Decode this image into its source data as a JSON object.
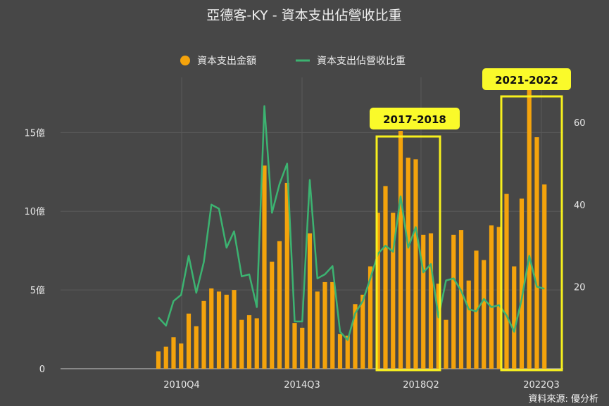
{
  "title": "亞德客-KY - 資本支出佔營收比重",
  "source": "資料來源: 優分析",
  "legend": [
    {
      "label": "資本支出金額",
      "type": "bar",
      "color": "#f4a30c"
    },
    {
      "label": "資本支出佔營收比重",
      "type": "line",
      "color": "#3cb371"
    }
  ],
  "annotations": [
    {
      "label": "2017-2018",
      "color": "#f7f01d"
    },
    {
      "label": "2021-2022",
      "color": "#f7f01d"
    }
  ],
  "chart_data": {
    "type": "bar",
    "title": "亞德客-KY - 資本支出佔營收比重",
    "x_tick_labels": [
      "2010Q4",
      "2014Q3",
      "2018Q2",
      "2022Q3"
    ],
    "y_left_tick_labels": [
      "0",
      "5億",
      "10億",
      "15億"
    ],
    "y_left_ticks": [
      0,
      5,
      10,
      15
    ],
    "y_left_unit": "億",
    "y_left_range": [
      0,
      18.5
    ],
    "y_right_ticks": [
      20,
      40,
      60
    ],
    "y_right_range": [
      0,
      71
    ],
    "grid": true,
    "legend_position": "top-center",
    "series": [
      {
        "name": "資本支出金額",
        "type": "bar",
        "axis": "left",
        "values": [
          1.1,
          1.4,
          2.0,
          1.6,
          3.5,
          2.7,
          4.3,
          5.1,
          4.9,
          4.7,
          5.0,
          3.1,
          3.4,
          3.2,
          12.9,
          6.8,
          8.1,
          11.8,
          2.9,
          2.6,
          8.6,
          4.9,
          5.5,
          5.5,
          2.2,
          2.1,
          4.1,
          4.7,
          6.5,
          9.9,
          11.6,
          9.9,
          15.1,
          13.4,
          13.3,
          8.5,
          8.6,
          5.4,
          3.1,
          8.5,
          8.8,
          5.6,
          7.5,
          6.9,
          9.1,
          9.0,
          11.1,
          6.5,
          10.8,
          17.8,
          14.7,
          11.7
        ]
      },
      {
        "name": "資本支出佔營收比重",
        "type": "line",
        "axis": "right",
        "values": [
          12.5,
          10.5,
          16.5,
          18,
          27.5,
          18.5,
          26,
          40,
          39,
          29.5,
          33.5,
          22.5,
          23,
          15,
          64,
          38,
          45,
          50,
          11.5,
          11.5,
          46,
          22,
          23,
          25,
          9,
          7,
          13.5,
          16.5,
          22,
          28,
          30,
          28.5,
          42,
          29.5,
          34.5,
          23.5,
          25.5,
          12.5,
          21.5,
          22,
          19,
          14.5,
          14,
          17,
          15,
          15.5,
          13,
          9,
          17,
          27.5,
          20,
          19.5
        ]
      }
    ]
  }
}
